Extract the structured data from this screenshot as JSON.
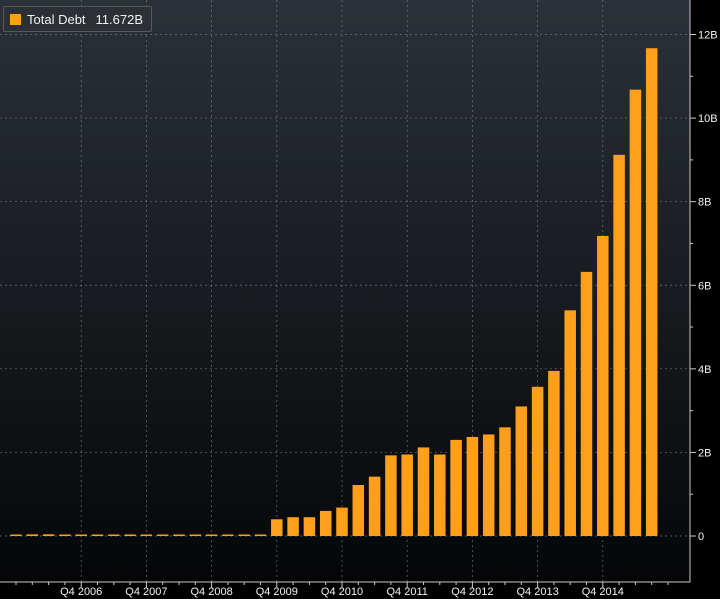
{
  "colors": {
    "bar": "#ff9f1a",
    "background_top": "#2b3138",
    "background_bottom": "#050607",
    "grid": "#8a8f96",
    "text": "#f2f2f2"
  },
  "legend": {
    "label": "Total Debt",
    "value": "11.672B"
  },
  "chart_data": {
    "type": "bar",
    "title": "",
    "xlabel": "",
    "ylabel": "",
    "grid": true,
    "legend_position": "top-left",
    "y_axis_side": "right",
    "ylim": [
      0,
      12.4
    ],
    "yticks": [
      {
        "value": 0,
        "label": "0"
      },
      {
        "value": 2,
        "label": "2B"
      },
      {
        "value": 4,
        "label": "4B"
      },
      {
        "value": 6,
        "label": "6B"
      },
      {
        "value": 8,
        "label": "8B"
      },
      {
        "value": 10,
        "label": "10B"
      },
      {
        "value": 12,
        "label": "12B"
      }
    ],
    "xtick_labels": [
      "Q4 2006",
      "Q4 2007",
      "Q4 2008",
      "Q4 2009",
      "Q4 2010",
      "Q4 2011",
      "Q4 2012",
      "Q4 2013",
      "Q4 2014"
    ],
    "xtick_label_index": [
      4,
      8,
      12,
      16,
      20,
      24,
      28,
      32,
      36
    ],
    "series": [
      {
        "name": "Total Debt",
        "values": [
          0.03,
          0.04,
          0.04,
          0.02,
          0.02,
          0.02,
          0.02,
          0.02,
          0.02,
          0.02,
          0.02,
          0.02,
          0.02,
          0.02,
          0.02,
          0.02,
          0.4,
          0.45,
          0.45,
          0.6,
          0.68,
          1.22,
          1.42,
          1.93,
          1.95,
          2.12,
          1.95,
          2.3,
          2.37,
          2.43,
          2.6,
          3.1,
          3.57,
          3.95,
          5.4,
          6.32,
          7.18,
          9.12,
          10.68,
          11.672
        ]
      }
    ]
  }
}
